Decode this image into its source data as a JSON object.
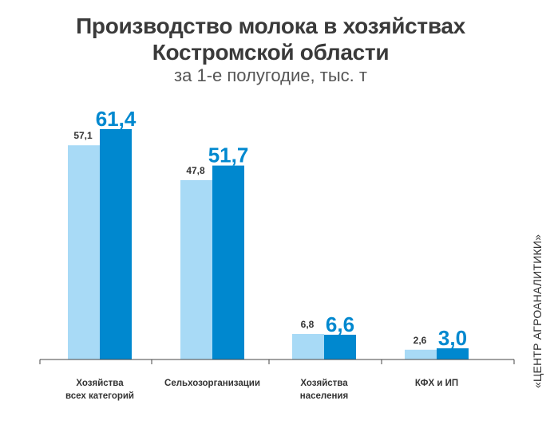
{
  "title_line1": "Производство молока в хозяйствах",
  "title_line2": "Костромской области",
  "subtitle": "за 1-е полугодие, тыс. т",
  "watermark": "«ЦЕНТР АГРОАНАЛИТИКИ»",
  "colors": {
    "prev": "#a8daf6",
    "curr": "#0088cf",
    "axis": "#444444",
    "label": "#333333"
  },
  "chart_data": {
    "type": "bar",
    "title": "Производство молока в хозяйствах Костромской области",
    "subtitle": "за 1-е полугодие, тыс. т",
    "categories": [
      [
        "Хозяйства",
        "всех категорий"
      ],
      [
        "Сельхозорганизации"
      ],
      [
        "Хозяйства",
        "населения"
      ],
      [
        "КФХ и ИП"
      ]
    ],
    "series": [
      {
        "values": [
          57.1,
          47.8,
          6.8,
          2.6
        ]
      },
      {
        "values": [
          61.4,
          51.7,
          6.6,
          3.0
        ]
      }
    ],
    "value_labels": [
      [
        "57,1",
        "47,8",
        "6,8",
        "2,6"
      ],
      [
        "61,4",
        "51,7",
        "6,6",
        "3,0"
      ]
    ],
    "ylim": [
      0,
      61.4
    ],
    "grid": false,
    "legend": "none"
  }
}
